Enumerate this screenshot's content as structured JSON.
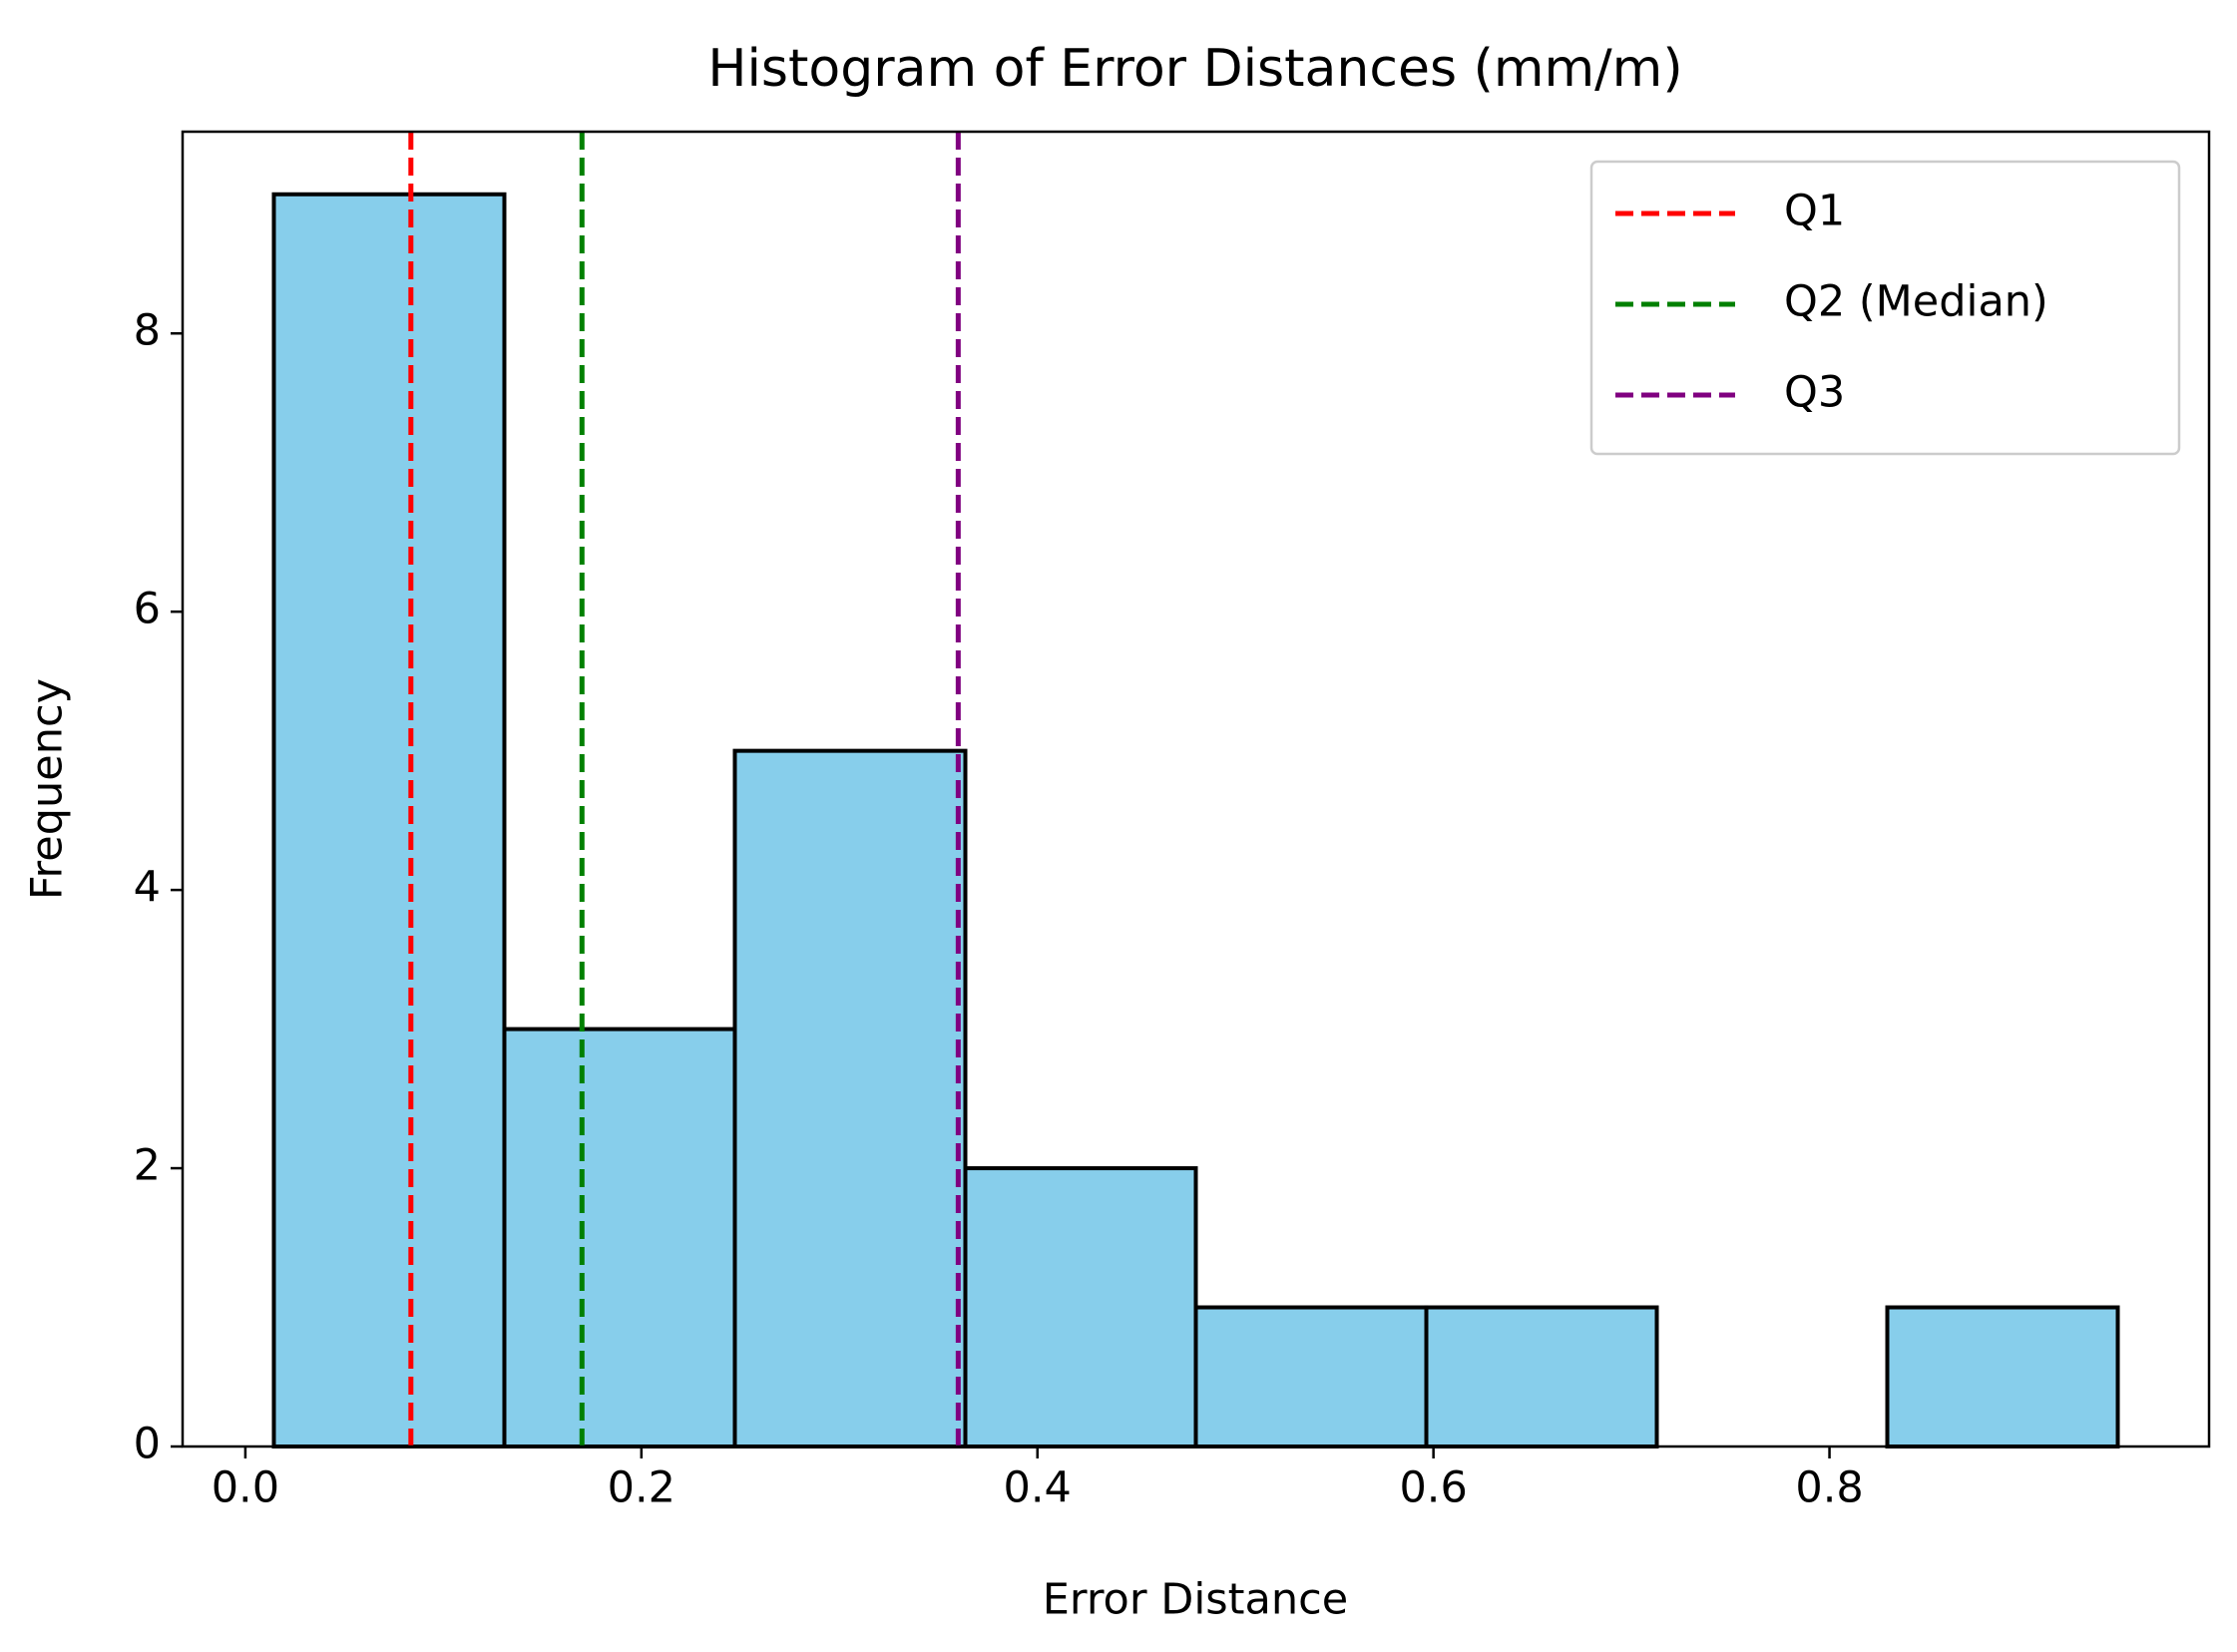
{
  "chart_data": {
    "type": "histogram",
    "title": "Histogram of Error Distances (mm/m)",
    "xlabel": "Error Distance",
    "ylabel": "Frequency",
    "bins": [
      0.0144,
      0.1308,
      0.2472,
      0.3636,
      0.48,
      0.5964,
      0.7128,
      0.8292,
      0.9456
    ],
    "counts": [
      9,
      3,
      5,
      2,
      1,
      1,
      0,
      1
    ],
    "color": "#87ceeb",
    "edgecolor": "#000000",
    "xlim": [
      -0.0317,
      0.9917
    ],
    "ylim": [
      0,
      9.45
    ],
    "xticks": [
      {
        "value": 0,
        "label": "0.0"
      },
      0.2,
      0.4,
      0.6,
      0.8
    ],
    "yticks": [
      0,
      2,
      4,
      6,
      8
    ],
    "lines": [
      {
        "name": "Q1",
        "color": "red",
        "x": 0.0836
      },
      {
        "name": "Q2 (Median)",
        "color": "green",
        "x": 0.17
      },
      {
        "name": "Q3",
        "color": "purple",
        "x": 0.36
      }
    ],
    "legend": "upper right"
  }
}
